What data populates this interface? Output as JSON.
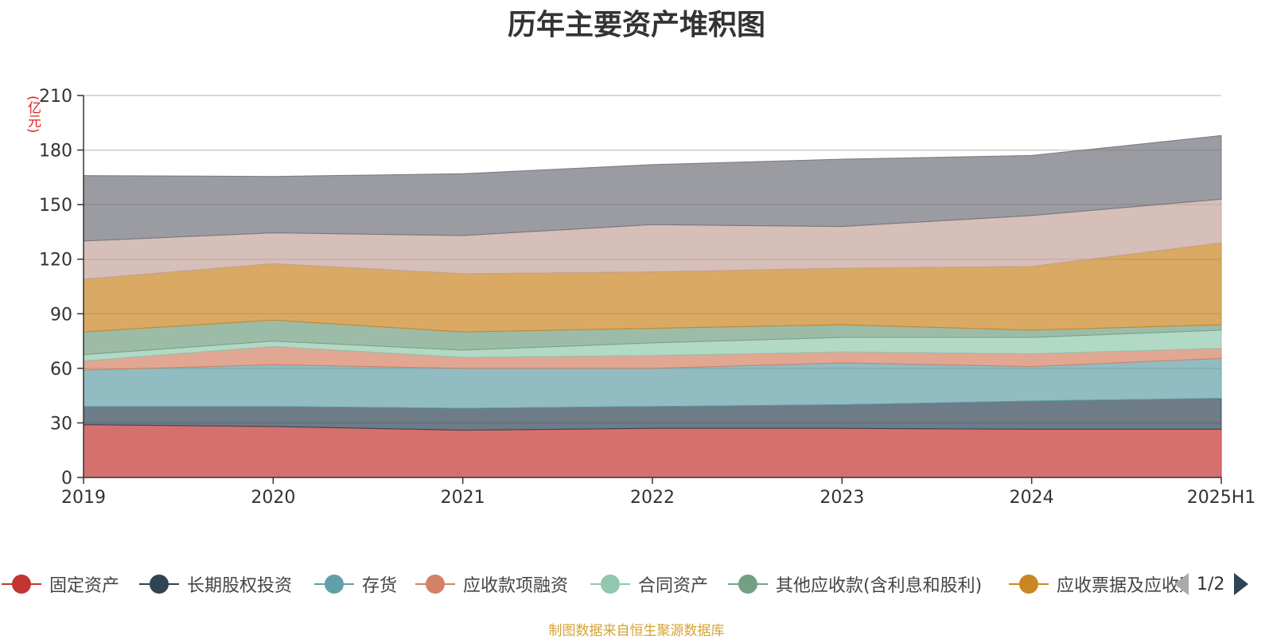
{
  "title": "历年主要资产堆积图",
  "unit_label": "(亿元)",
  "source_text": "制图数据来自恒生聚源数据库",
  "pager": {
    "text": "1/2"
  },
  "legend": [
    {
      "label": "固定资产",
      "color": "#c23531"
    },
    {
      "label": "长期股权投资",
      "color": "#2f4554"
    },
    {
      "label": "存货",
      "color": "#61a0a8"
    },
    {
      "label": "应收款项融资",
      "color": "#d48265"
    },
    {
      "label": "合同资产",
      "color": "#91c7ae"
    },
    {
      "label": "其他应收款(含利息和股利)",
      "color": "#749f83"
    },
    {
      "label": "应收票据及应收账款",
      "color": "#ca8622"
    }
  ],
  "chart_data": {
    "type": "area",
    "stacked": true,
    "title": "历年主要资产堆积图",
    "ylabel": "(亿元)",
    "ylim": [
      0,
      210
    ],
    "yticks": [
      0,
      30,
      60,
      90,
      120,
      150,
      180,
      210
    ],
    "categories": [
      "2019",
      "2020",
      "2021",
      "2022",
      "2023",
      "2024",
      "2025H1"
    ],
    "series": [
      {
        "name": "固定资产",
        "color": "#c23531",
        "values": [
          29,
          28,
          26,
          27,
          27,
          26.5,
          26.5
        ]
      },
      {
        "name": "长期股权投资",
        "color": "#2f4554",
        "values": [
          10,
          11,
          12,
          12,
          13,
          15.5,
          17
        ]
      },
      {
        "name": "存货",
        "color": "#61a0a8",
        "values": [
          20,
          23,
          22,
          21,
          23,
          19,
          22
        ]
      },
      {
        "name": "应收款项融资",
        "color": "#d48265",
        "values": [
          5,
          10,
          6,
          7,
          6,
          7,
          5.5
        ]
      },
      {
        "name": "合同资产",
        "color": "#91c7ae",
        "values": [
          3.5,
          3,
          4,
          7,
          8,
          9,
          10
        ]
      },
      {
        "name": "其他应收款(含利息和股利)",
        "color": "#749f83",
        "values": [
          12.5,
          11.5,
          10,
          8,
          7,
          4,
          3
        ]
      },
      {
        "name": "应收票据及应收账款",
        "color": "#ca8622",
        "values": [
          29,
          31,
          32,
          31,
          31,
          35,
          45
        ]
      },
      {
        "name": "",
        "color": "#c4a39b",
        "values": [
          21,
          17,
          21,
          26,
          23,
          28,
          24
        ]
      },
      {
        "name": "",
        "color": "#70717a",
        "values": [
          36,
          31,
          34,
          33,
          37,
          33,
          35
        ]
      }
    ],
    "grid": true,
    "legend_position": "bottom"
  }
}
